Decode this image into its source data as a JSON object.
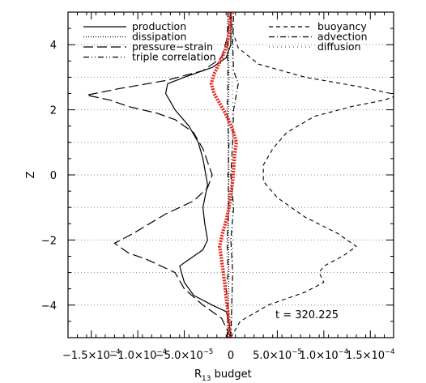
{
  "chart_data": {
    "type": "line",
    "xlabel": "R",
    "xlabel_sub": "13",
    "xlabel_suffix": " budget",
    "ylabel": "Z",
    "xlim": [
      -0.000175,
      0.000175
    ],
    "ylim": [
      -5,
      5
    ],
    "x_ticks": [
      {
        "value": -0.00015,
        "label": "−1.5×10"
      },
      {
        "value": -0.0001,
        "label": "−1.0×10"
      },
      {
        "value": -5e-05,
        "label": "−5.0×10"
      },
      {
        "value": 0,
        "label": "0"
      },
      {
        "value": 5e-05,
        "label": "5.0×10"
      },
      {
        "value": 0.0001,
        "label": "1.0×10"
      },
      {
        "value": 0.00015,
        "label": "1.5×10"
      }
    ],
    "x_tick_exponents": [
      "−4",
      "−4",
      "−5",
      "",
      "−5",
      "−4",
      "−4"
    ],
    "y_ticks": [
      -4,
      -2,
      0,
      2,
      4
    ],
    "y_tick_labels": [
      "−4",
      "−2",
      "0",
      "2",
      "4"
    ],
    "hgrid_levels": [
      4,
      3,
      2,
      1,
      0,
      -1,
      -2,
      -3,
      -4
    ],
    "annotation": "t = 320.225",
    "legend_left": [
      "production",
      "dissipation",
      "pressure−strain",
      "triple correlation"
    ],
    "legend_right": [
      "buoyancy",
      "advection",
      "diffusion"
    ],
    "series": [
      {
        "name": "production",
        "style": "solid",
        "points": [
          [
            0,
            -5
          ],
          [
            -2e-06,
            -4.5
          ],
          [
            -5e-06,
            -4.2
          ],
          [
            -2e-05,
            -4.0
          ],
          [
            -4e-05,
            -3.7
          ],
          [
            -5e-05,
            -3.3
          ],
          [
            -5.5e-05,
            -2.8
          ],
          [
            -4.5e-05,
            -2.6
          ],
          [
            -3e-05,
            -2.3
          ],
          [
            -2.5e-05,
            -2.0
          ],
          [
            -2.8e-05,
            -1.5
          ],
          [
            -3e-05,
            -1.0
          ],
          [
            -2.5e-05,
            -0.3
          ],
          [
            -3e-05,
            0.5
          ],
          [
            -3.5e-05,
            1.0
          ],
          [
            -4.5e-05,
            1.5
          ],
          [
            -6e-05,
            2.0
          ],
          [
            -7e-05,
            2.5
          ],
          [
            -6.8e-05,
            2.8
          ],
          [
            -5e-05,
            3.0
          ],
          [
            -2e-05,
            3.3
          ],
          [
            -5e-06,
            3.6
          ],
          [
            0,
            4.0
          ],
          [
            0,
            5
          ]
        ]
      },
      {
        "name": "dissipation",
        "style": "dotted",
        "points": [
          [
            -3e-06,
            -5
          ],
          [
            -2e-06,
            -3
          ],
          [
            -3e-06,
            -1
          ],
          [
            -2e-06,
            0
          ],
          [
            -3e-06,
            1
          ],
          [
            -2e-06,
            3
          ],
          [
            -3e-06,
            5
          ]
        ]
      },
      {
        "name": "pressure−strain",
        "style": "longdash",
        "points": [
          [
            0,
            -5
          ],
          [
            -1e-05,
            -4.4
          ],
          [
            -3e-05,
            -4.0
          ],
          [
            -5e-05,
            -3.5
          ],
          [
            -6e-05,
            -3.0
          ],
          [
            -9e-05,
            -2.6
          ],
          [
            -0.00011,
            -2.4
          ],
          [
            -0.000125,
            -2.1
          ],
          [
            -0.000105,
            -1.8
          ],
          [
            -7e-05,
            -1.2
          ],
          [
            -4e-05,
            -0.8
          ],
          [
            -2.5e-05,
            -0.4
          ],
          [
            -2e-05,
            0
          ],
          [
            -2.5e-05,
            0.4
          ],
          [
            -3e-05,
            0.8
          ],
          [
            -4e-05,
            1.3
          ],
          [
            -6e-05,
            1.7
          ],
          [
            -8e-05,
            1.9
          ],
          [
            -0.00011,
            2.1
          ],
          [
            -0.00013,
            2.3
          ],
          [
            -0.000155,
            2.45
          ],
          [
            -0.00012,
            2.65
          ],
          [
            -7e-05,
            2.9
          ],
          [
            -3e-05,
            3.2
          ],
          [
            -1e-05,
            3.6
          ],
          [
            -4e-06,
            4.2
          ],
          [
            0,
            5
          ]
        ]
      },
      {
        "name": "triple correlation",
        "style": "dashdotdot",
        "points": [
          [
            -4e-06,
            -5
          ],
          [
            -3e-06,
            -4
          ],
          [
            -5e-06,
            -3.5
          ],
          [
            -3e-06,
            -3
          ],
          [
            -4e-06,
            -2
          ],
          [
            -2e-06,
            -1
          ],
          [
            -3e-06,
            0
          ],
          [
            -2e-06,
            1
          ],
          [
            -4e-06,
            2
          ],
          [
            -3e-06,
            3
          ],
          [
            -4e-06,
            4
          ],
          [
            -3e-06,
            5
          ]
        ]
      },
      {
        "name": "buoyancy",
        "style": "dashed",
        "points": [
          [
            0,
            -5
          ],
          [
            1e-05,
            -4.5
          ],
          [
            4e-05,
            -4.0
          ],
          [
            8e-05,
            -3.6
          ],
          [
            0.0001,
            -3.3
          ],
          [
            9.5e-05,
            -3.0
          ],
          [
            0.0001,
            -2.8
          ],
          [
            0.00012,
            -2.5
          ],
          [
            0.000135,
            -2.2
          ],
          [
            0.000115,
            -1.8
          ],
          [
            8e-05,
            -1.3
          ],
          [
            5e-05,
            -0.7
          ],
          [
            3.5e-05,
            -0.2
          ],
          [
            3.5e-05,
            0.3
          ],
          [
            4.5e-05,
            0.8
          ],
          [
            6e-05,
            1.3
          ],
          [
            9e-05,
            1.8
          ],
          [
            0.00013,
            2.1
          ],
          [
            0.000165,
            2.3
          ],
          [
            0.00018,
            2.45
          ],
          [
            0.00014,
            2.7
          ],
          [
            8e-05,
            3.0
          ],
          [
            3e-05,
            3.4
          ],
          [
            8e-06,
            3.9
          ],
          [
            2e-06,
            4.4
          ],
          [
            0,
            5
          ]
        ]
      },
      {
        "name": "advection",
        "style": "dashdot",
        "points": [
          [
            0,
            -5
          ],
          [
            2e-06,
            -3
          ],
          [
            0,
            -2
          ],
          [
            3e-06,
            -1
          ],
          [
            0,
            0
          ],
          [
            2e-06,
            1
          ],
          [
            3e-06,
            2
          ],
          [
            8e-06,
            2.8
          ],
          [
            3e-06,
            3.2
          ],
          [
            2e-06,
            4
          ],
          [
            3e-06,
            5
          ]
        ]
      },
      {
        "name": "diffusion",
        "style": "sparse-dotted",
        "points": [
          [
            1e-06,
            -5
          ],
          [
            2e-06,
            -2
          ],
          [
            1e-06,
            0
          ],
          [
            2e-06,
            2
          ],
          [
            1e-06,
            5
          ]
        ]
      },
      {
        "name": "",
        "style": "red-dotted",
        "color": "#e8241a",
        "points": [
          [
            -1e-06,
            -5
          ],
          [
            -2e-06,
            -4.5
          ],
          [
            -4e-06,
            -4.0
          ],
          [
            -6e-06,
            -3.5
          ],
          [
            -8e-06,
            -3.0
          ],
          [
            -1e-05,
            -2.6
          ],
          [
            -1.2e-05,
            -2.2
          ],
          [
            -9e-06,
            -1.8
          ],
          [
            -5e-06,
            -1.4
          ],
          [
            -2e-06,
            -1.0
          ],
          [
            0,
            -0.6
          ],
          [
            2e-06,
            -0.2
          ],
          [
            3e-06,
            0.2
          ],
          [
            4e-06,
            0.6
          ],
          [
            6e-06,
            1.0
          ],
          [
            3e-06,
            1.3
          ],
          [
            -1e-06,
            1.6
          ],
          [
            -6e-06,
            1.9
          ],
          [
            -1.2e-05,
            2.2
          ],
          [
            -1.8e-05,
            2.5
          ],
          [
            -2.1e-05,
            2.8
          ],
          [
            -1.8e-05,
            3.1
          ],
          [
            -1.3e-05,
            3.4
          ],
          [
            -8e-06,
            3.7
          ],
          [
            -4e-06,
            4.0
          ],
          [
            -1e-06,
            4.5
          ],
          [
            0,
            5
          ]
        ]
      }
    ]
  }
}
